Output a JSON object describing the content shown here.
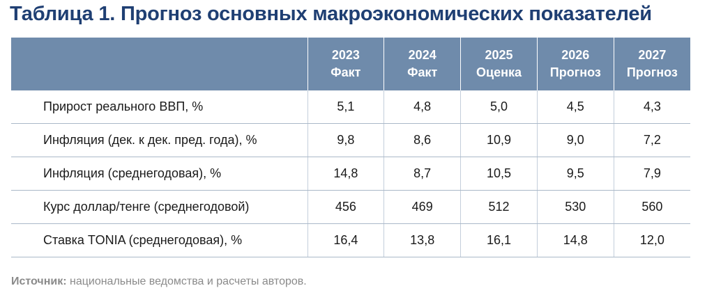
{
  "title": "Таблица 1. Прогноз основных макроэкономических показателей",
  "table": {
    "headers": [
      {
        "year": "2023",
        "status": "Факт"
      },
      {
        "year": "2024",
        "status": "Факт"
      },
      {
        "year": "2025",
        "status": "Оценка"
      },
      {
        "year": "2026",
        "status": "Прогноз"
      },
      {
        "year": "2027",
        "status": "Прогноз"
      }
    ],
    "rows": [
      {
        "label": "Прирост реального ВВП, %",
        "values": [
          "5,1",
          "4,8",
          "5,0",
          "4,5",
          "4,3"
        ]
      },
      {
        "label": "Инфляция (дек. к дек. пред. года), %",
        "values": [
          "9,8",
          "8,6",
          "10,9",
          "9,0",
          "7,2"
        ]
      },
      {
        "label": "Инфляция (среднегодовая), %",
        "values": [
          "14,8",
          "8,7",
          "10,5",
          "9,5",
          "7,9"
        ]
      },
      {
        "label": "Курс доллар/тенге (среднегодовой)",
        "values": [
          "456",
          "469",
          "512",
          "530",
          "560"
        ]
      },
      {
        "label": "Ставка TONIA (среднегодовая), %",
        "values": [
          "16,4",
          "13,8",
          "16,1",
          "14,8",
          "12,0"
        ]
      }
    ]
  },
  "source": {
    "label": "Источник:",
    "text": " национальные ведомства и расчеты авторов."
  },
  "colors": {
    "title": "#1f3f73",
    "header_bg": "#6f8bab",
    "header_text": "#ffffff",
    "source_text": "#8a8a8a"
  }
}
